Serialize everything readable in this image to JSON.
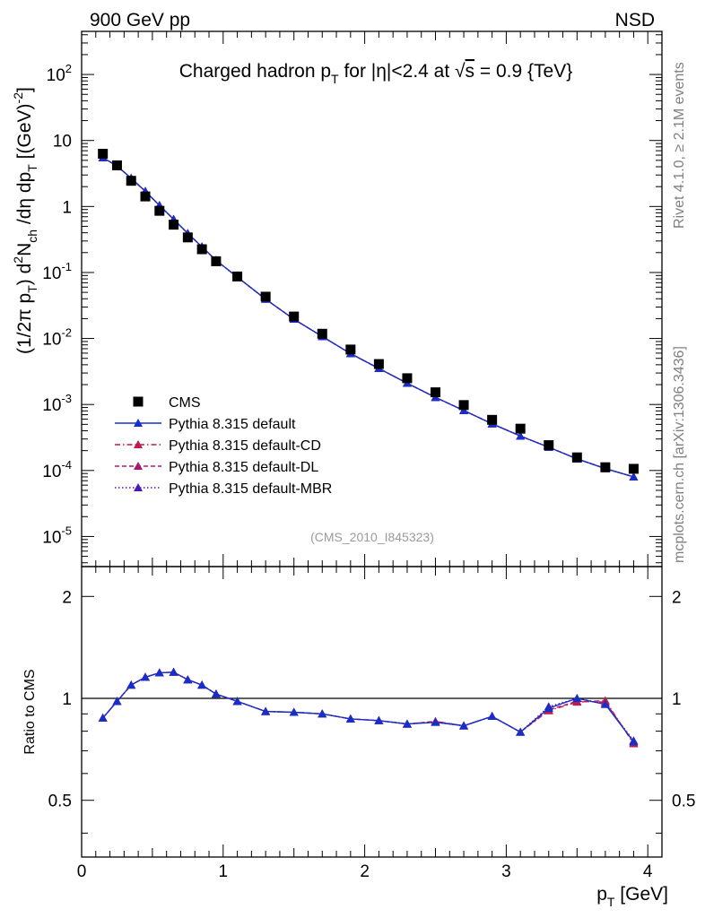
{
  "header": {
    "left": "900 GeV pp",
    "right": "NSD"
  },
  "side_labels": {
    "upper": "Rivet 4.1.0, ≥ 2.1M events",
    "lower": "mcplots.cern.ch [arXiv:1306.3436]"
  },
  "watermark": "(CMS_2010_I845323)",
  "chart_data": [
    {
      "type": "scatter",
      "panel": "main",
      "title": "Charged hadron p_T for |η|<2.4 at √s = 0.9 {TeV}",
      "title_parts": {
        "a": "Charged hadron p",
        "sub": "T",
        "b": " for |η|<2.4 at ",
        "root": "√",
        "s": "s",
        "c": " = 0.9 {TeV}"
      },
      "ylabel": "(1/2π p_T) d²N_ch/dη dp_T [(GeV)^-2]",
      "ylabel_parts": {
        "a": "(1/2π p",
        "sub1": "T",
        "b": ") d",
        "sup2": "2",
        "c": "N",
        "sub2": "ch",
        "d": " /dη  dp",
        "sub3": "T",
        "e": " [(GeV)",
        "sup3": "-2",
        "f": "]"
      },
      "yscale": "log",
      "ylim": [
        3.5e-06,
        450
      ],
      "xlim": [
        0,
        4.1
      ],
      "yticks": [
        {
          "v": 1e-05,
          "base": "10",
          "exp": "-5"
        },
        {
          "v": 0.0001,
          "base": "10",
          "exp": "-4"
        },
        {
          "v": 0.001,
          "base": "10",
          "exp": "-3"
        },
        {
          "v": 0.01,
          "base": "10",
          "exp": "-2"
        },
        {
          "v": 0.1,
          "base": "10",
          "exp": "-1"
        },
        {
          "v": 1,
          "base": "1",
          "exp": ""
        },
        {
          "v": 10,
          "base": "10",
          "exp": ""
        },
        {
          "v": 100,
          "base": "10",
          "exp": "2"
        }
      ],
      "x": [
        0.15,
        0.25,
        0.35,
        0.45,
        0.55,
        0.65,
        0.75,
        0.85,
        0.95,
        1.1,
        1.3,
        1.5,
        1.7,
        1.9,
        2.1,
        2.3,
        2.5,
        2.7,
        2.9,
        3.1,
        3.3,
        3.5,
        3.7,
        3.9
      ],
      "series": [
        {
          "name": "CMS",
          "style": "square",
          "color": "#000000",
          "values": [
            6.3,
            4.2,
            2.45,
            1.42,
            0.86,
            0.53,
            0.34,
            0.225,
            0.148,
            0.087,
            0.043,
            0.0215,
            0.0118,
            0.0068,
            0.0041,
            0.0025,
            0.00153,
            0.00098,
            0.000585,
            0.00043,
            0.000242,
            0.000158,
            0.000112,
            0.000106
          ]
        },
        {
          "name": "Pythia 8.315 default",
          "style": "solid",
          "color": "#1530c8",
          "values": [
            5.5,
            4.1,
            2.68,
            1.7,
            1.04,
            0.64,
            0.39,
            0.245,
            0.153,
            0.085,
            0.0395,
            0.0196,
            0.0107,
            0.0059,
            0.00351,
            0.0021,
            0.00128,
            0.00081,
            0.00051,
            0.000332,
            0.000225,
            0.00015,
            0.000107,
            8e-05
          ]
        },
        {
          "name": "Pythia 8.315 default-CD",
          "style": "dashdot",
          "color": "#c01850",
          "values": [
            5.5,
            4.1,
            2.68,
            1.7,
            1.04,
            0.64,
            0.39,
            0.245,
            0.153,
            0.085,
            0.0395,
            0.0196,
            0.0107,
            0.0059,
            0.00351,
            0.0021,
            0.00128,
            0.00081,
            0.00051,
            0.000332,
            0.000225,
            0.00015,
            0.000107,
            8e-05
          ]
        },
        {
          "name": "Pythia 8.315 default-DL",
          "style": "dashed",
          "color": "#a8186e",
          "values": [
            5.5,
            4.1,
            2.68,
            1.7,
            1.04,
            0.64,
            0.39,
            0.245,
            0.153,
            0.085,
            0.0395,
            0.0196,
            0.0107,
            0.0059,
            0.00351,
            0.0021,
            0.00128,
            0.00081,
            0.00051,
            0.000332,
            0.000225,
            0.00015,
            0.000107,
            8e-05
          ]
        },
        {
          "name": "Pythia 8.315 default-MBR",
          "style": "dotted",
          "color": "#4818b8",
          "values": [
            5.5,
            4.1,
            2.68,
            1.7,
            1.04,
            0.64,
            0.39,
            0.245,
            0.153,
            0.085,
            0.0395,
            0.0196,
            0.0107,
            0.0059,
            0.00351,
            0.0021,
            0.00128,
            0.00081,
            0.00051,
            0.000332,
            0.000225,
            0.00015,
            0.000107,
            8e-05
          ]
        }
      ],
      "legend": "lower-left"
    },
    {
      "type": "line",
      "panel": "ratio",
      "ylabel": "Ratio to CMS",
      "xlabel": "p_T [GeV]",
      "xlabel_parts": {
        "a": "p",
        "sub": "T",
        "b": " [GeV]"
      },
      "yscale": "log",
      "ylim": [
        0.34,
        2.45
      ],
      "xlim": [
        0,
        4.1
      ],
      "yticks": [
        {
          "v": 0.5,
          "label": "0.5"
        },
        {
          "v": 1,
          "label": "1"
        },
        {
          "v": 2,
          "label": "2"
        }
      ],
      "xticks": [
        {
          "v": 0,
          "label": "0"
        },
        {
          "v": 1,
          "label": "1"
        },
        {
          "v": 2,
          "label": "2"
        },
        {
          "v": 3,
          "label": "3"
        },
        {
          "v": 4,
          "label": "4"
        }
      ],
      "reference_line": 1,
      "x": [
        0.15,
        0.25,
        0.35,
        0.45,
        0.55,
        0.65,
        0.75,
        0.85,
        0.95,
        1.1,
        1.3,
        1.5,
        1.7,
        1.9,
        2.1,
        2.3,
        2.5,
        2.7,
        2.9,
        3.1,
        3.3,
        3.5,
        3.7,
        3.9
      ],
      "series": [
        {
          "name": "Pythia 8.315 default",
          "style": "solid",
          "color": "#1530c8",
          "values": [
            0.875,
            0.98,
            1.095,
            1.155,
            1.19,
            1.195,
            1.135,
            1.095,
            1.03,
            0.98,
            0.915,
            0.91,
            0.9,
            0.87,
            0.86,
            0.84,
            0.85,
            0.83,
            0.885,
            0.795,
            0.935,
            1.0,
            0.96,
            0.745
          ]
        },
        {
          "name": "Pythia 8.315 default-CD",
          "style": "dashdot",
          "color": "#c01850",
          "values": [
            0.875,
            0.98,
            1.095,
            1.155,
            1.19,
            1.195,
            1.135,
            1.095,
            1.03,
            0.98,
            0.915,
            0.91,
            0.9,
            0.87,
            0.86,
            0.84,
            0.855,
            0.83,
            0.885,
            0.795,
            0.92,
            0.975,
            0.985,
            0.735
          ]
        },
        {
          "name": "Pythia 8.315 default-DL",
          "style": "dashed",
          "color": "#a8186e",
          "values": [
            0.875,
            0.98,
            1.095,
            1.155,
            1.19,
            1.195,
            1.135,
            1.095,
            1.03,
            0.98,
            0.915,
            0.91,
            0.9,
            0.87,
            0.86,
            0.84,
            0.855,
            0.83,
            0.885,
            0.795,
            0.925,
            0.98,
            0.975,
            0.74
          ]
        },
        {
          "name": "Pythia 8.315 default-MBR",
          "style": "dotted",
          "color": "#4818b8",
          "values": [
            0.875,
            0.98,
            1.095,
            1.155,
            1.19,
            1.195,
            1.135,
            1.095,
            1.03,
            0.98,
            0.915,
            0.91,
            0.9,
            0.87,
            0.86,
            0.84,
            0.85,
            0.83,
            0.885,
            0.795,
            0.945,
            1.0,
            0.965,
            0.75
          ]
        }
      ]
    }
  ]
}
